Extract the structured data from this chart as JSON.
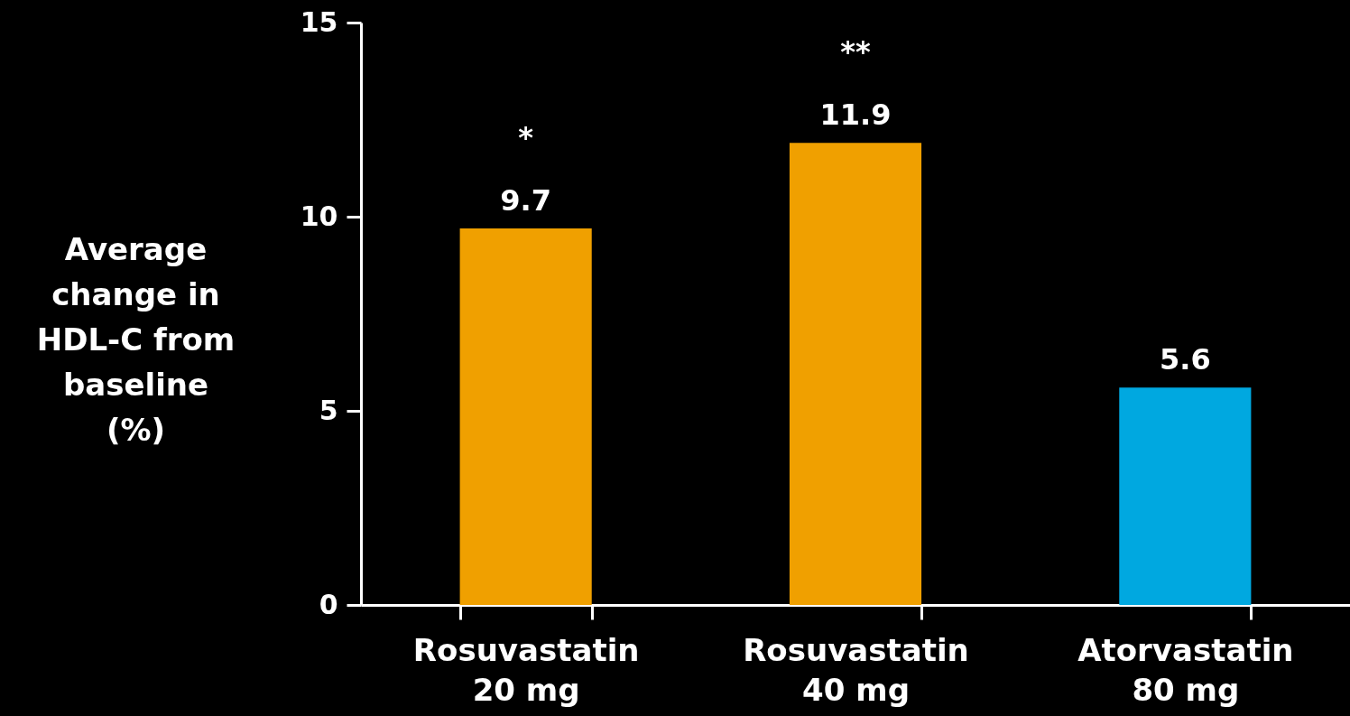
{
  "chart_data": {
    "type": "bar",
    "categories": [
      "Rosuvastatin 20 mg",
      "Rosuvastatin 40 mg",
      "Atorvastatin 80 mg"
    ],
    "values": [
      9.7,
      11.9,
      5.6
    ],
    "colors": [
      "#f0a000",
      "#f0a000",
      "#00a8e0"
    ],
    "ylabel": "Average change in HDL-C from baseline (%)",
    "ylim": [
      0,
      15
    ],
    "yticks": [
      0,
      5,
      10,
      15
    ],
    "data_labels": true,
    "grid": false,
    "annotations": [
      "*",
      "**"
    ]
  }
}
